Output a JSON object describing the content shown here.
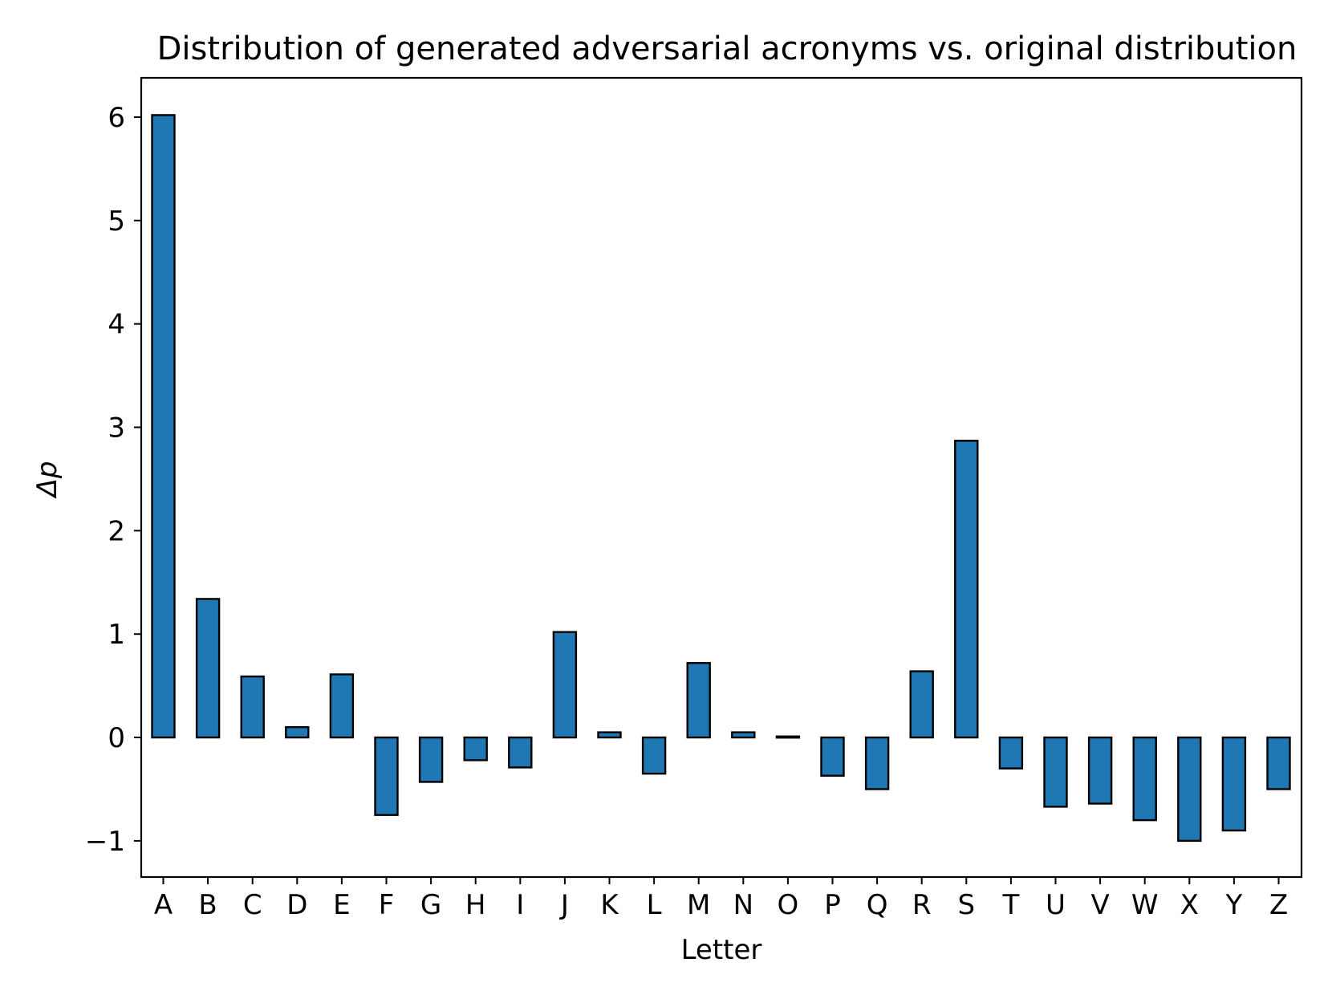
{
  "chart_data": {
    "type": "bar",
    "title": "Distribution of generated adversarial acronyms vs. original distribution",
    "xlabel": "Letter",
    "ylabel": "Δp",
    "categories": [
      "A",
      "B",
      "C",
      "D",
      "E",
      "F",
      "G",
      "H",
      "I",
      "J",
      "K",
      "L",
      "M",
      "N",
      "O",
      "P",
      "Q",
      "R",
      "S",
      "T",
      "U",
      "V",
      "W",
      "X",
      "Y",
      "Z"
    ],
    "values": [
      6.02,
      1.34,
      0.59,
      0.1,
      0.61,
      -0.75,
      -0.43,
      -0.22,
      -0.29,
      1.02,
      0.05,
      -0.35,
      0.72,
      0.05,
      0.01,
      -0.37,
      -0.5,
      0.64,
      2.87,
      -0.3,
      -0.67,
      -0.64,
      -0.8,
      -1.0,
      -0.9,
      -0.5
    ],
    "ylim": [
      -1.35,
      6.38
    ],
    "yticks": [
      -1,
      0,
      1,
      2,
      3,
      4,
      5,
      6
    ],
    "ytick_labels": [
      "−1",
      "0",
      "1",
      "2",
      "3",
      "4",
      "5",
      "6"
    ],
    "grid": false,
    "legend": "none",
    "colors": {
      "bar_fill": "#1f77b4",
      "bar_edge": "#000000",
      "axes": "#000000",
      "background": "#ffffff"
    }
  }
}
